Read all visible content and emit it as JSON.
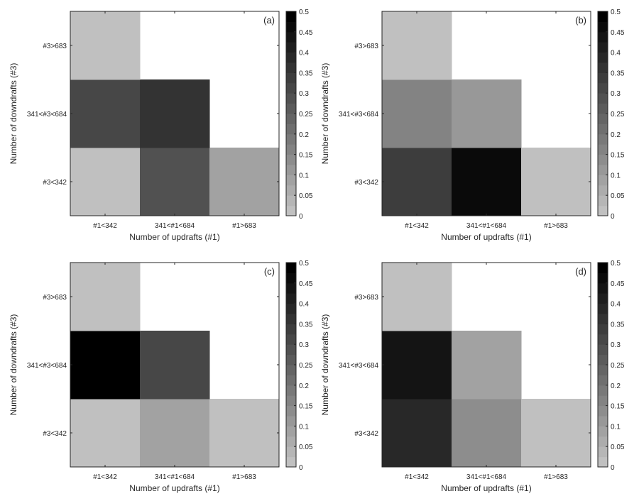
{
  "chart_data": [
    {
      "type": "heatmap",
      "panel_label": "(a)",
      "xlabel": "Number of updrafts (#1)",
      "ylabel": "Number of downdrafts (#3)",
      "x_categories": [
        "#1<342",
        "341<#1<684",
        "#1>683"
      ],
      "y_categories": [
        "#3<342",
        "341<#3<684",
        "#3>683"
      ],
      "values": [
        [
          0.01,
          0.275,
          0.075
        ],
        [
          0.3,
          0.35,
          null
        ],
        [
          0.01,
          null,
          null
        ]
      ],
      "colorbar": {
        "range": [
          0,
          0.5
        ],
        "ticks": [
          "0",
          "0.05",
          "0.1",
          "0.15",
          "0.2",
          "0.25",
          "0.3",
          "0.35",
          "0.4",
          "0.45",
          "0.5"
        ],
        "levels": 20
      }
    },
    {
      "type": "heatmap",
      "panel_label": "(b)",
      "xlabel": "Number of updrafts (#1)",
      "ylabel": "Number of downdrafts (#3)",
      "x_categories": [
        "#1<342",
        "341<#1<684",
        "#1>683"
      ],
      "y_categories": [
        "#3<342",
        "341<#3<684",
        "#3>683"
      ],
      "values": [
        [
          0.325,
          0.45,
          0.01
        ],
        [
          0.15,
          0.1,
          null
        ],
        [
          0.01,
          null,
          null
        ]
      ],
      "colorbar": {
        "range": [
          0,
          0.5
        ],
        "ticks": [
          "0",
          "0.05",
          "0.1",
          "0.15",
          "0.2",
          "0.25",
          "0.3",
          "0.35",
          "0.4",
          "0.45",
          "0.5"
        ],
        "levels": 20
      }
    },
    {
      "type": "heatmap",
      "panel_label": "(c)",
      "xlabel": "Number of updrafts (#1)",
      "ylabel": "Number of downdrafts (#3)",
      "x_categories": [
        "#1<342",
        "341<#1<684",
        "#1>683"
      ],
      "y_categories": [
        "#3<342",
        "341<#3<684",
        "#3>683"
      ],
      "values": [
        [
          0.01,
          0.075,
          0.01
        ],
        [
          0.5,
          0.3,
          null
        ],
        [
          0.01,
          null,
          null
        ]
      ],
      "colorbar": {
        "range": [
          0,
          0.5
        ],
        "ticks": [
          "0",
          "0.05",
          "0.1",
          "0.15",
          "0.2",
          "0.25",
          "0.3",
          "0.35",
          "0.4",
          "0.45",
          "0.5"
        ],
        "levels": 20
      }
    },
    {
      "type": "heatmap",
      "panel_label": "(d)",
      "xlabel": "Number of updrafts (#1)",
      "ylabel": "Number of downdrafts (#3)",
      "x_categories": [
        "#1<342",
        "341<#1<684",
        "#1>683"
      ],
      "y_categories": [
        "#3<342",
        "341<#3<684",
        "#3>683"
      ],
      "values": [
        [
          0.375,
          0.125,
          0.01
        ],
        [
          0.425,
          0.075,
          null
        ],
        [
          0.01,
          null,
          null
        ]
      ],
      "colorbar": {
        "range": [
          0,
          0.5
        ],
        "ticks": [
          "0",
          "0.05",
          "0.1",
          "0.15",
          "0.2",
          "0.25",
          "0.3",
          "0.35",
          "0.4",
          "0.45",
          "0.5"
        ],
        "levels": 20
      }
    }
  ]
}
